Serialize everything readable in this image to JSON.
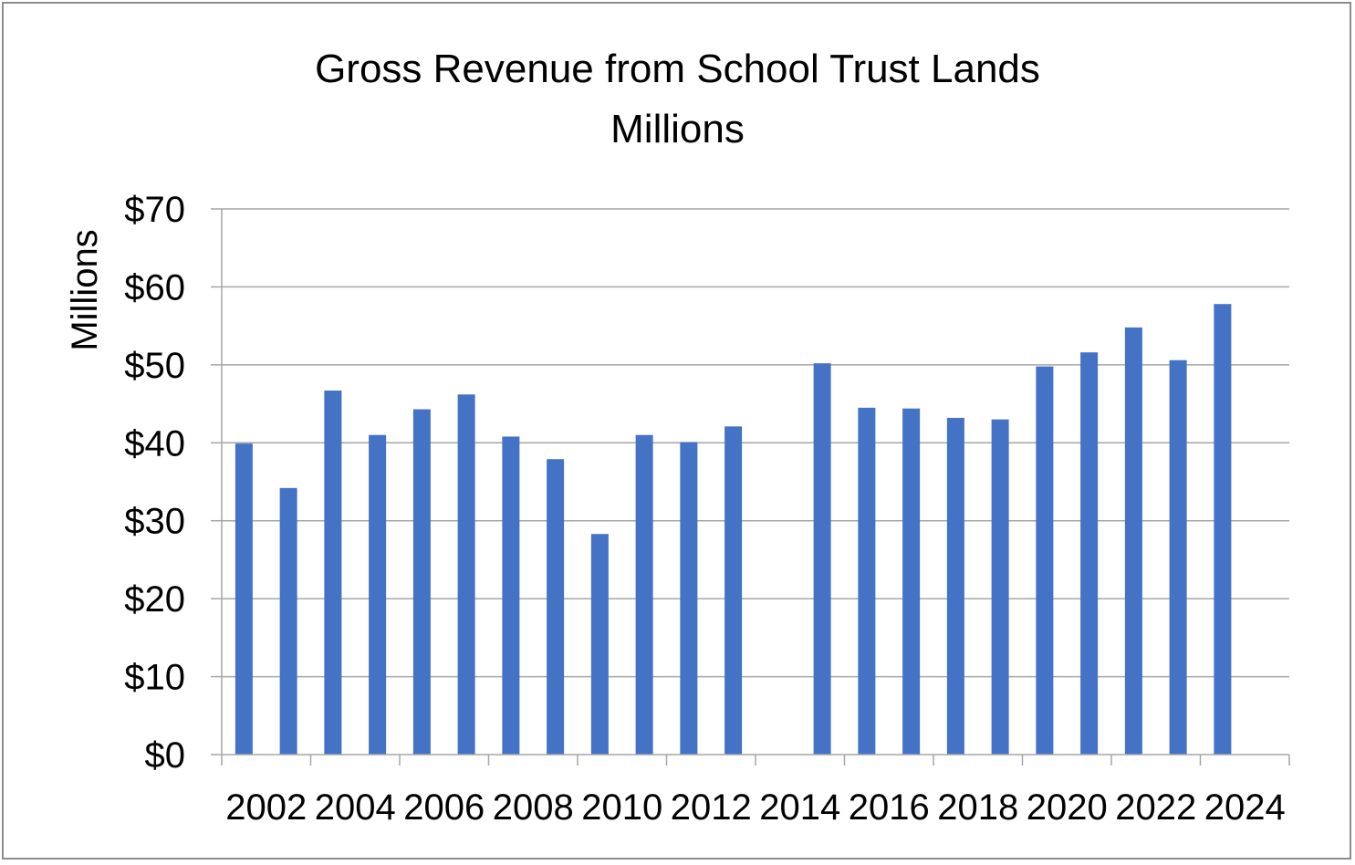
{
  "chart_data": {
    "type": "bar",
    "title": "Gross Revenue from School Trust Lands",
    "subtitle": "Millions",
    "ylabel": "Millions",
    "xlabel": "",
    "ylim": [
      0,
      70
    ],
    "yticks": [
      0,
      10,
      20,
      30,
      40,
      50,
      60,
      70
    ],
    "ytick_labels": [
      "$0",
      "$10",
      "$20",
      "$30",
      "$40",
      "$50",
      "$60",
      "$70"
    ],
    "categories": [
      2002,
      2003,
      2004,
      2005,
      2006,
      2007,
      2008,
      2009,
      2010,
      2011,
      2012,
      2013,
      2014,
      2015,
      2016,
      2017,
      2018,
      2019,
      2020,
      2021,
      2022,
      2023,
      2024
    ],
    "xtick_labels": [
      "2002",
      "2004",
      "2006",
      "2008",
      "2010",
      "2012",
      "2014",
      "2016",
      "2018",
      "2020",
      "2022",
      "2024"
    ],
    "values": [
      39.9,
      34.2,
      46.7,
      41.0,
      44.3,
      46.2,
      40.8,
      37.9,
      28.3,
      41.0,
      40.1,
      42.1,
      null,
      50.2,
      44.5,
      44.4,
      43.2,
      43.0,
      49.8,
      51.6,
      54.8,
      50.6,
      57.8
    ],
    "grid": true,
    "colors": {
      "bar": "#4472c4",
      "grid": "#a6a6a6",
      "axis": "#a6a6a6",
      "border": "#8c8c8c"
    }
  }
}
